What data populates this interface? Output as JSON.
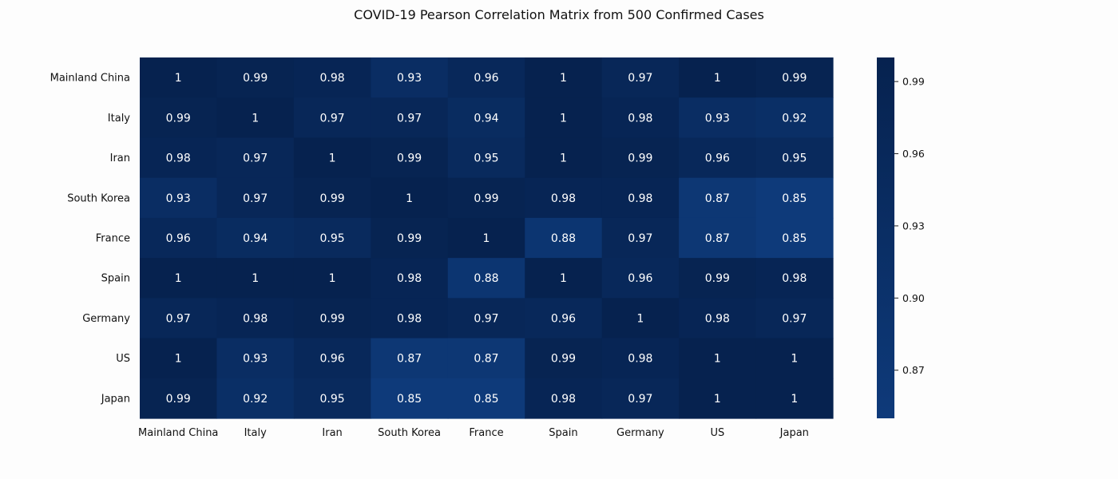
{
  "chart_data": {
    "type": "heatmap",
    "title": "COVID-19 Pearson Correlation Matrix from 500 Confirmed Cases",
    "xlabel": "",
    "ylabel": "",
    "x_categories": [
      "Mainland China",
      "Italy",
      "Iran",
      "South Korea",
      "France",
      "Spain",
      "Germany",
      "US",
      "Japan"
    ],
    "y_categories": [
      "Mainland China",
      "Italy",
      "Iran",
      "South Korea",
      "France",
      "Spain",
      "Germany",
      "US",
      "Japan"
    ],
    "values": [
      [
        1,
        0.99,
        0.98,
        0.93,
        0.96,
        1,
        0.97,
        1,
        0.99
      ],
      [
        0.99,
        1,
        0.97,
        0.97,
        0.94,
        1,
        0.98,
        0.93,
        0.92
      ],
      [
        0.98,
        0.97,
        1,
        0.99,
        0.95,
        1,
        0.99,
        0.96,
        0.95
      ],
      [
        0.93,
        0.97,
        0.99,
        1,
        0.99,
        0.98,
        0.98,
        0.87,
        0.85
      ],
      [
        0.96,
        0.94,
        0.95,
        0.99,
        1,
        0.88,
        0.97,
        0.87,
        0.85
      ],
      [
        1,
        1,
        1,
        0.98,
        0.88,
        1,
        0.96,
        0.99,
        0.98
      ],
      [
        0.97,
        0.98,
        0.99,
        0.98,
        0.97,
        0.96,
        1,
        0.98,
        0.97
      ],
      [
        1,
        0.93,
        0.96,
        0.87,
        0.87,
        0.99,
        0.98,
        1,
        1
      ],
      [
        0.99,
        0.92,
        0.95,
        0.85,
        0.85,
        0.98,
        0.97,
        1,
        1
      ]
    ],
    "annotated": true,
    "colorbar": {
      "ticks": [
        0.99,
        0.96,
        0.93,
        0.9,
        0.87
      ],
      "tick_labels": [
        "0.99",
        "0.96",
        "0.93",
        "0.90",
        "0.87"
      ],
      "range": [
        0.85,
        1.0
      ],
      "low_color": "#0e3a7a",
      "high_color": "#06224f"
    },
    "grid": false,
    "legend": "colorbar-right"
  }
}
